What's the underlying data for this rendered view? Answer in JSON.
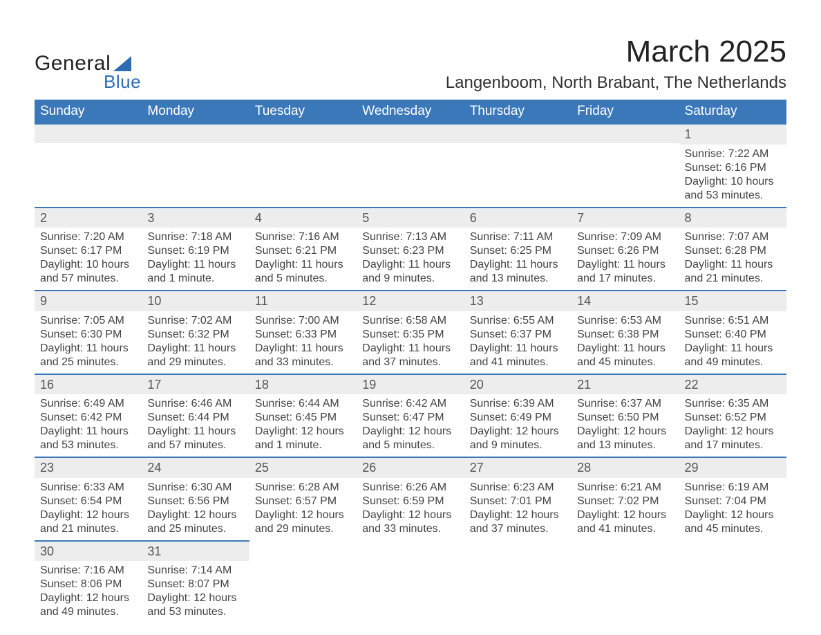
{
  "logo": {
    "word1": "General",
    "word2": "Blue"
  },
  "title": "March 2025",
  "location": "Langenboom, North Brabant, The Netherlands",
  "style": {
    "header_bg": "#3b78b9",
    "header_text": "#ffffff",
    "daynum_bg": "#ededed",
    "border_color": "#3b78b9",
    "body_text": "#444444",
    "title_fontsize": 44,
    "location_fontsize": 24,
    "dayheader_fontsize": 19,
    "cell_fontsize": 16
  },
  "day_headers": [
    "Sunday",
    "Monday",
    "Tuesday",
    "Wednesday",
    "Thursday",
    "Friday",
    "Saturday"
  ],
  "weeks": [
    [
      {
        "day": "",
        "sunrise": "",
        "sunset": "",
        "daylight": ""
      },
      {
        "day": "",
        "sunrise": "",
        "sunset": "",
        "daylight": ""
      },
      {
        "day": "",
        "sunrise": "",
        "sunset": "",
        "daylight": ""
      },
      {
        "day": "",
        "sunrise": "",
        "sunset": "",
        "daylight": ""
      },
      {
        "day": "",
        "sunrise": "",
        "sunset": "",
        "daylight": ""
      },
      {
        "day": "",
        "sunrise": "",
        "sunset": "",
        "daylight": ""
      },
      {
        "day": "1",
        "sunrise": "Sunrise: 7:22 AM",
        "sunset": "Sunset: 6:16 PM",
        "daylight": "Daylight: 10 hours and 53 minutes."
      }
    ],
    [
      {
        "day": "2",
        "sunrise": "Sunrise: 7:20 AM",
        "sunset": "Sunset: 6:17 PM",
        "daylight": "Daylight: 10 hours and 57 minutes."
      },
      {
        "day": "3",
        "sunrise": "Sunrise: 7:18 AM",
        "sunset": "Sunset: 6:19 PM",
        "daylight": "Daylight: 11 hours and 1 minute."
      },
      {
        "day": "4",
        "sunrise": "Sunrise: 7:16 AM",
        "sunset": "Sunset: 6:21 PM",
        "daylight": "Daylight: 11 hours and 5 minutes."
      },
      {
        "day": "5",
        "sunrise": "Sunrise: 7:13 AM",
        "sunset": "Sunset: 6:23 PM",
        "daylight": "Daylight: 11 hours and 9 minutes."
      },
      {
        "day": "6",
        "sunrise": "Sunrise: 7:11 AM",
        "sunset": "Sunset: 6:25 PM",
        "daylight": "Daylight: 11 hours and 13 minutes."
      },
      {
        "day": "7",
        "sunrise": "Sunrise: 7:09 AM",
        "sunset": "Sunset: 6:26 PM",
        "daylight": "Daylight: 11 hours and 17 minutes."
      },
      {
        "day": "8",
        "sunrise": "Sunrise: 7:07 AM",
        "sunset": "Sunset: 6:28 PM",
        "daylight": "Daylight: 11 hours and 21 minutes."
      }
    ],
    [
      {
        "day": "9",
        "sunrise": "Sunrise: 7:05 AM",
        "sunset": "Sunset: 6:30 PM",
        "daylight": "Daylight: 11 hours and 25 minutes."
      },
      {
        "day": "10",
        "sunrise": "Sunrise: 7:02 AM",
        "sunset": "Sunset: 6:32 PM",
        "daylight": "Daylight: 11 hours and 29 minutes."
      },
      {
        "day": "11",
        "sunrise": "Sunrise: 7:00 AM",
        "sunset": "Sunset: 6:33 PM",
        "daylight": "Daylight: 11 hours and 33 minutes."
      },
      {
        "day": "12",
        "sunrise": "Sunrise: 6:58 AM",
        "sunset": "Sunset: 6:35 PM",
        "daylight": "Daylight: 11 hours and 37 minutes."
      },
      {
        "day": "13",
        "sunrise": "Sunrise: 6:55 AM",
        "sunset": "Sunset: 6:37 PM",
        "daylight": "Daylight: 11 hours and 41 minutes."
      },
      {
        "day": "14",
        "sunrise": "Sunrise: 6:53 AM",
        "sunset": "Sunset: 6:38 PM",
        "daylight": "Daylight: 11 hours and 45 minutes."
      },
      {
        "day": "15",
        "sunrise": "Sunrise: 6:51 AM",
        "sunset": "Sunset: 6:40 PM",
        "daylight": "Daylight: 11 hours and 49 minutes."
      }
    ],
    [
      {
        "day": "16",
        "sunrise": "Sunrise: 6:49 AM",
        "sunset": "Sunset: 6:42 PM",
        "daylight": "Daylight: 11 hours and 53 minutes."
      },
      {
        "day": "17",
        "sunrise": "Sunrise: 6:46 AM",
        "sunset": "Sunset: 6:44 PM",
        "daylight": "Daylight: 11 hours and 57 minutes."
      },
      {
        "day": "18",
        "sunrise": "Sunrise: 6:44 AM",
        "sunset": "Sunset: 6:45 PM",
        "daylight": "Daylight: 12 hours and 1 minute."
      },
      {
        "day": "19",
        "sunrise": "Sunrise: 6:42 AM",
        "sunset": "Sunset: 6:47 PM",
        "daylight": "Daylight: 12 hours and 5 minutes."
      },
      {
        "day": "20",
        "sunrise": "Sunrise: 6:39 AM",
        "sunset": "Sunset: 6:49 PM",
        "daylight": "Daylight: 12 hours and 9 minutes."
      },
      {
        "day": "21",
        "sunrise": "Sunrise: 6:37 AM",
        "sunset": "Sunset: 6:50 PM",
        "daylight": "Daylight: 12 hours and 13 minutes."
      },
      {
        "day": "22",
        "sunrise": "Sunrise: 6:35 AM",
        "sunset": "Sunset: 6:52 PM",
        "daylight": "Daylight: 12 hours and 17 minutes."
      }
    ],
    [
      {
        "day": "23",
        "sunrise": "Sunrise: 6:33 AM",
        "sunset": "Sunset: 6:54 PM",
        "daylight": "Daylight: 12 hours and 21 minutes."
      },
      {
        "day": "24",
        "sunrise": "Sunrise: 6:30 AM",
        "sunset": "Sunset: 6:56 PM",
        "daylight": "Daylight: 12 hours and 25 minutes."
      },
      {
        "day": "25",
        "sunrise": "Sunrise: 6:28 AM",
        "sunset": "Sunset: 6:57 PM",
        "daylight": "Daylight: 12 hours and 29 minutes."
      },
      {
        "day": "26",
        "sunrise": "Sunrise: 6:26 AM",
        "sunset": "Sunset: 6:59 PM",
        "daylight": "Daylight: 12 hours and 33 minutes."
      },
      {
        "day": "27",
        "sunrise": "Sunrise: 6:23 AM",
        "sunset": "Sunset: 7:01 PM",
        "daylight": "Daylight: 12 hours and 37 minutes."
      },
      {
        "day": "28",
        "sunrise": "Sunrise: 6:21 AM",
        "sunset": "Sunset: 7:02 PM",
        "daylight": "Daylight: 12 hours and 41 minutes."
      },
      {
        "day": "29",
        "sunrise": "Sunrise: 6:19 AM",
        "sunset": "Sunset: 7:04 PM",
        "daylight": "Daylight: 12 hours and 45 minutes."
      }
    ],
    [
      {
        "day": "30",
        "sunrise": "Sunrise: 7:16 AM",
        "sunset": "Sunset: 8:06 PM",
        "daylight": "Daylight: 12 hours and 49 minutes."
      },
      {
        "day": "31",
        "sunrise": "Sunrise: 7:14 AM",
        "sunset": "Sunset: 8:07 PM",
        "daylight": "Daylight: 12 hours and 53 minutes."
      },
      {
        "day": "",
        "sunrise": "",
        "sunset": "",
        "daylight": ""
      },
      {
        "day": "",
        "sunrise": "",
        "sunset": "",
        "daylight": ""
      },
      {
        "day": "",
        "sunrise": "",
        "sunset": "",
        "daylight": ""
      },
      {
        "day": "",
        "sunrise": "",
        "sunset": "",
        "daylight": ""
      },
      {
        "day": "",
        "sunrise": "",
        "sunset": "",
        "daylight": ""
      }
    ]
  ]
}
